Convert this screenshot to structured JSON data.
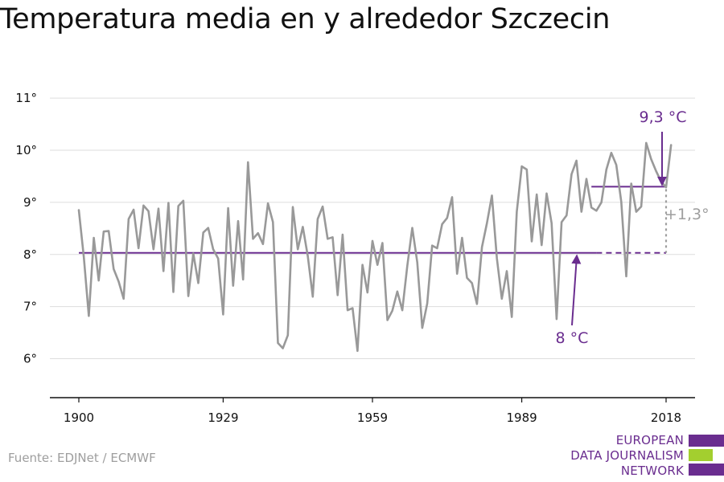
{
  "title": "Temperatura media en y alrededor Szczecin",
  "source": "Fuente: EDJNet / ECMWF",
  "logo": {
    "lines": [
      "EUROPEAN",
      "DATA JOURNALISM",
      "NETWORK"
    ]
  },
  "colors": {
    "series": "#999999",
    "accent": "#6a2d8f",
    "logo_green": "#a3cf2f",
    "grid": "#dddddd",
    "diff": "#9e9e9e"
  },
  "chart_data": {
    "type": "line",
    "title": "Temperatura media en y alrededor Szczecin",
    "xlabel": "",
    "ylabel": "",
    "xlim": [
      1898,
      2024
    ],
    "ylim": [
      5.2,
      11.4
    ],
    "yticks": [
      6,
      7,
      8,
      9,
      10,
      11
    ],
    "ytick_labels": [
      "6°",
      "7°",
      "8°",
      "9°",
      "10°",
      "11°"
    ],
    "xticks": [
      1900,
      1929,
      1959,
      1989,
      2018
    ],
    "xtick_labels": [
      "1900",
      "1929",
      "1959",
      "1989",
      "2018"
    ],
    "grid": true,
    "series": [
      {
        "x": [
          1900,
          1901,
          1902,
          1903,
          1904,
          1905,
          1906,
          1907,
          1908,
          1909,
          1910,
          1911,
          1912,
          1913,
          1914,
          1915,
          1916,
          1917,
          1918,
          1919,
          1920,
          1921,
          1922,
          1923,
          1924,
          1925,
          1926,
          1927,
          1928,
          1929,
          1930,
          1931,
          1932,
          1933,
          1934,
          1935,
          1936,
          1937,
          1938,
          1939,
          1940,
          1941,
          1942,
          1943,
          1944,
          1945,
          1946,
          1947,
          1948,
          1949,
          1950,
          1951,
          1952,
          1953,
          1954,
          1955,
          1956,
          1957,
          1958,
          1959,
          1960,
          1961,
          1962,
          1963,
          1964,
          1965,
          1966,
          1967,
          1968,
          1969,
          1970,
          1971,
          1972,
          1973,
          1974,
          1975,
          1976,
          1977,
          1978,
          1979,
          1980,
          1981,
          1982,
          1983,
          1984,
          1985,
          1986,
          1987,
          1988,
          1989,
          1990,
          1991,
          1992,
          1993,
          1994,
          1995,
          1996,
          1997,
          1998,
          1999,
          2000,
          2001,
          2002,
          2003,
          2004,
          2005,
          2006,
          2007,
          2008,
          2009,
          2010,
          2011,
          2012,
          2013,
          2014,
          2015,
          2016,
          2017,
          2018,
          2019
        ],
        "values": [
          8.85,
          7.95,
          6.82,
          8.32,
          7.5,
          8.44,
          8.45,
          7.72,
          7.48,
          7.15,
          8.68,
          8.86,
          8.12,
          8.94,
          8.83,
          8.1,
          8.88,
          7.68,
          8.99,
          7.28,
          8.93,
          9.03,
          7.2,
          8.02,
          7.45,
          8.42,
          8.51,
          8.1,
          7.92,
          6.85,
          8.89,
          7.4,
          8.64,
          7.52,
          9.77,
          8.3,
          8.41,
          8.2,
          8.98,
          8.62,
          6.3,
          6.2,
          6.45,
          8.91,
          8.1,
          8.53,
          7.97,
          7.19,
          8.68,
          8.92,
          8.3,
          8.33,
          7.22,
          8.38,
          6.93,
          6.97,
          6.15,
          7.8,
          7.27,
          8.26,
          7.8,
          8.22,
          6.74,
          6.92,
          7.29,
          6.93,
          7.78,
          8.51,
          7.85,
          6.59,
          7.06,
          8.17,
          8.12,
          8.58,
          8.7,
          9.1,
          7.63,
          8.32,
          7.55,
          7.45,
          7.05,
          8.14,
          8.6,
          9.13,
          7.92,
          7.15,
          7.68,
          6.8,
          8.82,
          9.69,
          9.63,
          8.25,
          9.15,
          8.18,
          9.17,
          8.6,
          6.76,
          8.62,
          8.75,
          9.54,
          9.8,
          8.82,
          9.45,
          8.9,
          8.84,
          9.0,
          9.63,
          9.95,
          9.72,
          9.01,
          7.58,
          9.36,
          8.82,
          8.92,
          10.14,
          9.83,
          9.6,
          9.4,
          9.29,
          10.1
        ]
      }
    ],
    "annotations": {
      "baseline_label": "8 °C",
      "baseline_value": 8.03,
      "baseline_solid_x": [
        1900,
        2004
      ],
      "baseline_dash_x": [
        2004,
        2018
      ],
      "recent_label": "9,3 °C",
      "recent_value": 9.3,
      "recent_x": [
        2003,
        2018
      ],
      "diff_label": "+1,3°"
    }
  }
}
